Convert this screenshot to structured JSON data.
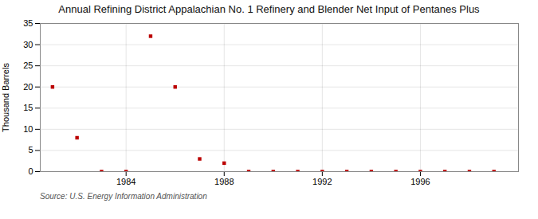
{
  "chart_data": {
    "type": "scatter",
    "title": "Annual Refining District Appalachian No. 1 Refinery and Blender Net Input of Pentanes Plus",
    "ylabel": "Thousand Barrels",
    "source": "Source: U.S. Energy Information Administration",
    "x": [
      1981,
      1982,
      1983,
      1984,
      1985,
      1986,
      1987,
      1988,
      1989,
      1990,
      1991,
      1992,
      1993,
      1994,
      1995,
      1996,
      1997,
      1998,
      1999
    ],
    "values": [
      20,
      8,
      0,
      0,
      32,
      20,
      3,
      2,
      0,
      0,
      0,
      0,
      0,
      0,
      0,
      0,
      0,
      0,
      0
    ],
    "color": "#bb0000",
    "marker": "square",
    "xlim": [
      1980.5,
      2000
    ],
    "xticks": [
      1984,
      1988,
      1992,
      1996
    ],
    "ylim": [
      0,
      35
    ],
    "yticks": [
      0,
      5,
      10,
      15,
      20,
      25,
      30,
      35
    ],
    "grid": true
  }
}
